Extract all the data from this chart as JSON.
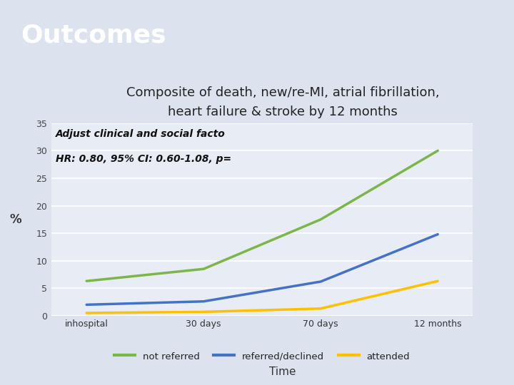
{
  "title": "Outcomes",
  "subtitle_line1": "Composite of death, new/re-MI, atrial fibrillation,",
  "subtitle_line2": "heart failure & stroke by 12 months",
  "annotation_line1": "Adjust clinical and social facto",
  "annotation_line2": "HR: 0.80, 95% CI: 0.60-1.08, p=",
  "x_labels": [
    "inhospital",
    "30 days",
    "70 days",
    "12 months"
  ],
  "x_values": [
    0,
    1,
    2,
    3
  ],
  "not_referred": [
    6.3,
    8.5,
    17.5,
    30.0
  ],
  "referred_declined": [
    2.0,
    2.6,
    6.2,
    14.8
  ],
  "attended": [
    0.5,
    0.7,
    1.3,
    6.3
  ],
  "color_not_referred": "#7ab648",
  "color_referred_declined": "#4472c4",
  "color_attended": "#ffc000",
  "ylabel": "%",
  "xlabel": "Time",
  "ylim": [
    0,
    35
  ],
  "yticks": [
    0,
    5,
    10,
    15,
    20,
    25,
    30,
    35
  ],
  "header_bg": "#253870",
  "header_title": "Outcomes",
  "header_title_color": "#ffffff",
  "bg_color": "#dce3ef",
  "plot_bg_color": "#e8ecf4",
  "line_width": 2.5,
  "legend_labels": [
    "not referred",
    "referred/declined",
    "attended"
  ],
  "subtitle_fontsize": 13,
  "header_fontsize": 26,
  "annotation_fontsize": 10
}
